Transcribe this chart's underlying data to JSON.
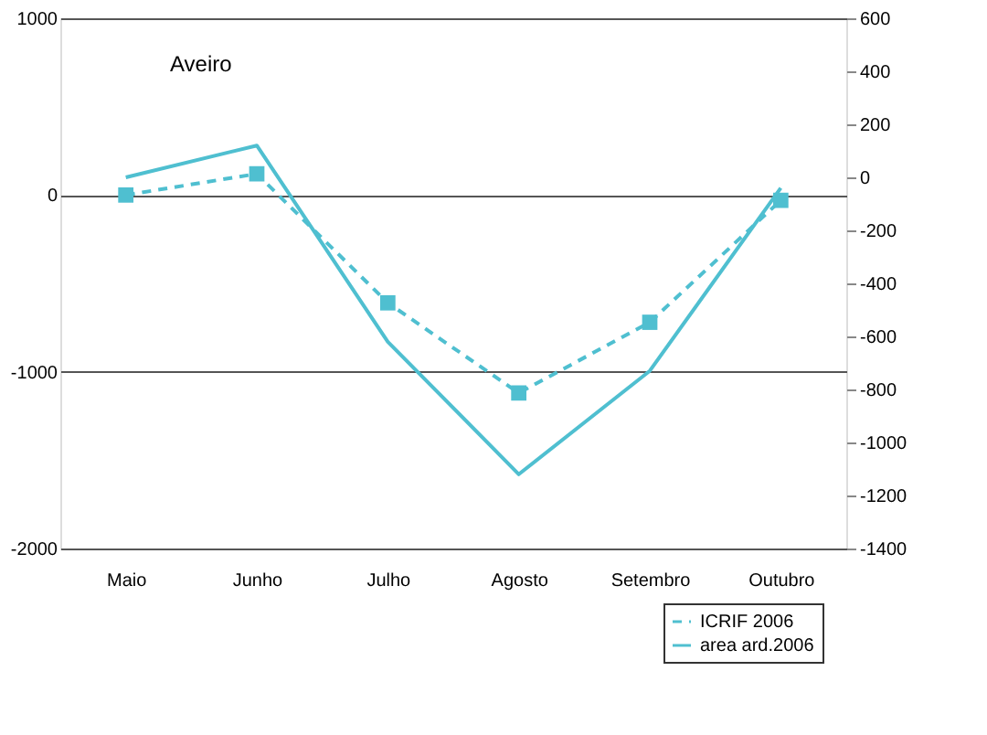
{
  "chart_data": {
    "type": "line",
    "title": "Aveiro",
    "categories": [
      "Maio",
      "Junho",
      "Julho",
      "Agosto",
      "Setembro",
      "Outubro"
    ],
    "series": [
      {
        "name": "ICRIF 2006",
        "color": "#4fbfd0",
        "values": [
          0,
          120,
          -610,
          -1120,
          -720,
          -30
        ],
        "marker": "square",
        "line_style": "dashed"
      },
      {
        "name": "area ard.2006",
        "color": "#4fbfd0",
        "values": [
          0,
          120,
          -620,
          -1120,
          -730,
          -40
        ],
        "marker": "none",
        "line_style": "solid",
        "axis": "y2"
      }
    ],
    "ylim": [
      -2000,
      1000
    ],
    "yticks": [
      -2000,
      -1000,
      0,
      1000
    ],
    "y2lim": [
      -1400,
      600
    ],
    "y2ticks": [
      -1400,
      -1200,
      -1000,
      -800,
      -600,
      -400,
      -200,
      0,
      200,
      400,
      600
    ],
    "grid": "y",
    "legend": "bottom right"
  }
}
